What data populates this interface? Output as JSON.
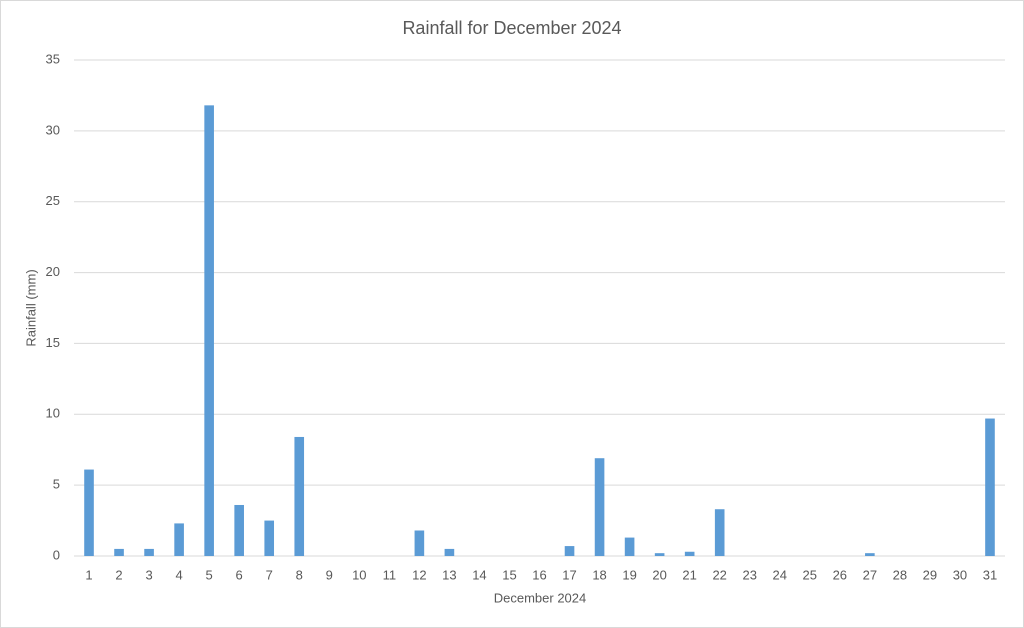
{
  "chart_data": {
    "type": "bar",
    "title": "Rainfall for December 2024",
    "x_label": "December 2024",
    "y_label": "Rainfall (mm)",
    "categories": [
      "1",
      "2",
      "3",
      "4",
      "5",
      "6",
      "7",
      "8",
      "9",
      "10",
      "11",
      "12",
      "13",
      "14",
      "15",
      "16",
      "17",
      "18",
      "19",
      "20",
      "21",
      "22",
      "23",
      "24",
      "25",
      "26",
      "27",
      "28",
      "29",
      "30",
      "31"
    ],
    "values": [
      6.1,
      0.5,
      0.5,
      2.3,
      31.8,
      3.6,
      2.5,
      8.4,
      0,
      0,
      0,
      1.8,
      0.5,
      0,
      0,
      0,
      0.7,
      6.9,
      1.3,
      0.2,
      0.3,
      3.3,
      0,
      0,
      0,
      0,
      0.2,
      0,
      0,
      0,
      9.7
    ],
    "color": "#5b9bd5",
    "ylim": [
      0,
      35
    ],
    "yticks": [
      0,
      5,
      10,
      15,
      20,
      25,
      30,
      35
    ],
    "grid": true
  }
}
